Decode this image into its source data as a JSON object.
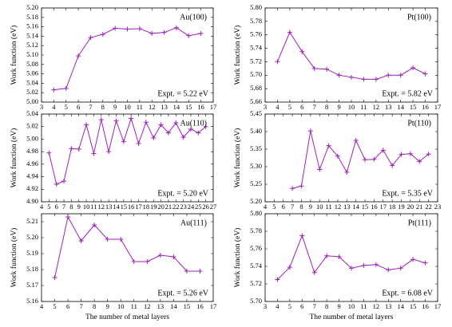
{
  "chart_data": [
    {
      "type": "line",
      "label": "Au(100)",
      "annotation": "Expt. = 5.22 eV",
      "y_label": "Work function (eV)",
      "color": "#a020c0",
      "x": [
        4,
        5,
        6,
        7,
        8,
        9,
        10,
        11,
        12,
        13,
        14,
        15,
        16
      ],
      "values": [
        5.026,
        5.029,
        5.098,
        5.137,
        5.144,
        5.157,
        5.155,
        5.156,
        5.146,
        5.148,
        5.158,
        5.141,
        5.146
      ],
      "xlim": [
        3,
        17
      ],
      "xticks": [
        3,
        4,
        5,
        6,
        7,
        8,
        9,
        10,
        11,
        12,
        13,
        14,
        15,
        16,
        17
      ],
      "ylim": [
        5.0,
        5.2
      ],
      "yticks": [
        {
          "value": 5.0,
          "label": "5.00"
        },
        5.02,
        5.04,
        5.06,
        5.08,
        {
          "value": 5.1,
          "label": "5.10"
        },
        5.12,
        5.14,
        5.16,
        5.18,
        {
          "value": 5.2,
          "label": "5.20"
        }
      ]
    },
    {
      "type": "line",
      "label": "Pt(100)",
      "annotation": "Expt. = 5.82 eV",
      "y_label": "Work function (eV)",
      "color": "#a020c0",
      "x": [
        4,
        5,
        6,
        7,
        8,
        9,
        10,
        11,
        12,
        13,
        14,
        15,
        16
      ],
      "values": [
        5.72,
        5.764,
        5.735,
        5.71,
        5.709,
        5.7,
        5.697,
        5.694,
        5.694,
        5.7,
        5.7,
        5.711,
        5.702
      ],
      "xlim": [
        3,
        17
      ],
      "xticks": [
        3,
        4,
        5,
        6,
        7,
        8,
        9,
        10,
        11,
        12,
        13,
        14,
        15,
        16,
        17
      ],
      "ylim": [
        5.66,
        5.8
      ],
      "yticks": [
        5.66,
        5.68,
        {
          "value": 5.7,
          "label": "5.70"
        },
        5.72,
        5.74,
        5.76,
        5.78,
        {
          "value": 5.8,
          "label": "5.80"
        }
      ]
    },
    {
      "type": "line",
      "label": "Au(110)",
      "annotation": "Expt. = 5.20 eV",
      "y_label": "Work function (eV)",
      "color": "#a020c0",
      "x": [
        5,
        6,
        7,
        8,
        9,
        10,
        11,
        12,
        13,
        14,
        15,
        16,
        17,
        18,
        19,
        20,
        21,
        22,
        23,
        24,
        25,
        26
      ],
      "values": [
        4.978,
        4.928,
        4.933,
        4.985,
        4.984,
        5.023,
        4.977,
        5.031,
        4.98,
        5.029,
        4.996,
        5.033,
        4.993,
        5.027,
        5.002,
        5.023,
        5.01,
        5.026,
        5.003,
        5.016,
        5.01,
        5.02
      ],
      "xlim": [
        4,
        27
      ],
      "xticks": [
        4,
        5,
        6,
        7,
        8,
        9,
        10,
        11,
        12,
        13,
        14,
        15,
        16,
        17,
        18,
        19,
        20,
        21,
        22,
        23,
        24,
        25,
        26,
        27
      ],
      "ylim": [
        4.9,
        5.04
      ],
      "yticks": [
        {
          "value": 4.9,
          "label": "4.90"
        },
        4.92,
        4.94,
        4.96,
        4.98,
        {
          "value": 5.0,
          "label": "5.00"
        },
        5.02,
        5.04
      ]
    },
    {
      "type": "line",
      "label": "Pt(110)",
      "annotation": "Expt. = 5.35 eV",
      "y_label": "Work function (eV)",
      "color": "#a020c0",
      "x": [
        7,
        8,
        9,
        10,
        11,
        12,
        13,
        14,
        15,
        16,
        17,
        18,
        19,
        20,
        21,
        22
      ],
      "values": [
        5.238,
        5.245,
        5.402,
        5.292,
        5.36,
        5.33,
        5.284,
        5.375,
        5.32,
        5.321,
        5.347,
        5.303,
        5.335,
        5.337,
        5.315,
        5.336
      ],
      "xlim": [
        4,
        23
      ],
      "xticks": [
        4,
        5,
        6,
        7,
        8,
        9,
        10,
        11,
        12,
        13,
        14,
        15,
        16,
        17,
        18,
        19,
        20,
        21,
        22,
        23
      ],
      "ylim": [
        5.2,
        5.45
      ],
      "yticks": [
        {
          "value": 5.2,
          "label": "5.20"
        },
        5.25,
        {
          "value": 5.3,
          "label": "5.30"
        },
        5.35,
        {
          "value": 5.4,
          "label": "5.40"
        },
        5.45
      ]
    },
    {
      "type": "line",
      "label": "Au(111)",
      "annotation": "Expt. = 5.26 eV",
      "y_label": "Work function (eV)",
      "x_label": "The number of metal layers",
      "color": "#a020c0",
      "x": [
        5,
        6,
        7,
        8,
        9,
        10,
        11,
        12,
        13,
        14,
        15,
        16
      ],
      "values": [
        5.175,
        5.213,
        5.198,
        5.208,
        5.199,
        5.199,
        5.185,
        5.185,
        5.189,
        5.188,
        5.179,
        5.179
      ],
      "xlim": [
        4,
        17
      ],
      "xticks": [
        4,
        5,
        6,
        7,
        8,
        9,
        10,
        11,
        12,
        13,
        14,
        15,
        16,
        17
      ],
      "ylim": [
        5.16,
        5.215
      ],
      "yticks": [
        5.16,
        5.17,
        5.18,
        5.19,
        {
          "value": 5.2,
          "label": "5.20"
        },
        5.21
      ]
    },
    {
      "type": "line",
      "label": "Pt(111)",
      "annotation": "Expt. = 6.08 eV",
      "y_label": "Work function (eV)",
      "x_label": "The number of metal layers",
      "color": "#a020c0",
      "x": [
        4,
        5,
        6,
        7,
        8,
        9,
        10,
        11,
        12,
        13,
        14,
        15,
        16
      ],
      "values": [
        5.725,
        5.739,
        5.775,
        5.733,
        5.752,
        5.751,
        5.738,
        5.741,
        5.742,
        5.736,
        5.738,
        5.748,
        5.744
      ],
      "xlim": [
        3,
        17
      ],
      "xticks": [
        3,
        4,
        5,
        6,
        7,
        8,
        9,
        10,
        11,
        12,
        13,
        14,
        15,
        16,
        17
      ],
      "ylim": [
        5.7,
        5.8
      ],
      "yticks": [
        {
          "value": 5.7,
          "label": "5.70"
        },
        5.72,
        5.74,
        5.76,
        5.78,
        {
          "value": 5.8,
          "label": "5.80"
        }
      ]
    }
  ]
}
